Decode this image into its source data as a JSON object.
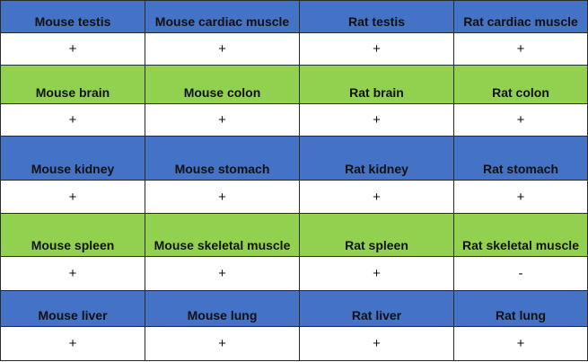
{
  "colors": {
    "blue": "#4472c4",
    "green": "#92d050",
    "white": "#ffffff"
  },
  "rows": [
    {
      "color": "blue",
      "headers": [
        "Mouse testis",
        "Mouse cardiac muscle",
        "Rat testis",
        "Rat cardiac muscle"
      ],
      "values": [
        "+",
        "+",
        "+",
        "+"
      ]
    },
    {
      "color": "green",
      "headers": [
        "Mouse brain",
        "Mouse colon",
        "Rat brain",
        "Rat colon"
      ],
      "values": [
        "+",
        "+",
        "+",
        "+"
      ]
    },
    {
      "color": "blue",
      "headers": [
        "Mouse kidney",
        "Mouse stomach",
        "Rat kidney",
        "Rat stomach"
      ],
      "values": [
        "+",
        "+",
        "+",
        "+"
      ]
    },
    {
      "color": "green",
      "headers": [
        "Mouse spleen",
        "Mouse skeletal muscle",
        "Rat spleen",
        "Rat skeletal muscle"
      ],
      "values": [
        "+",
        "+",
        "+",
        "-"
      ]
    },
    {
      "color": "blue",
      "headers": [
        "Mouse liver",
        "Mouse lung",
        "Rat liver",
        "Rat lung"
      ],
      "values": [
        "+",
        "+",
        "+",
        "+"
      ]
    }
  ]
}
